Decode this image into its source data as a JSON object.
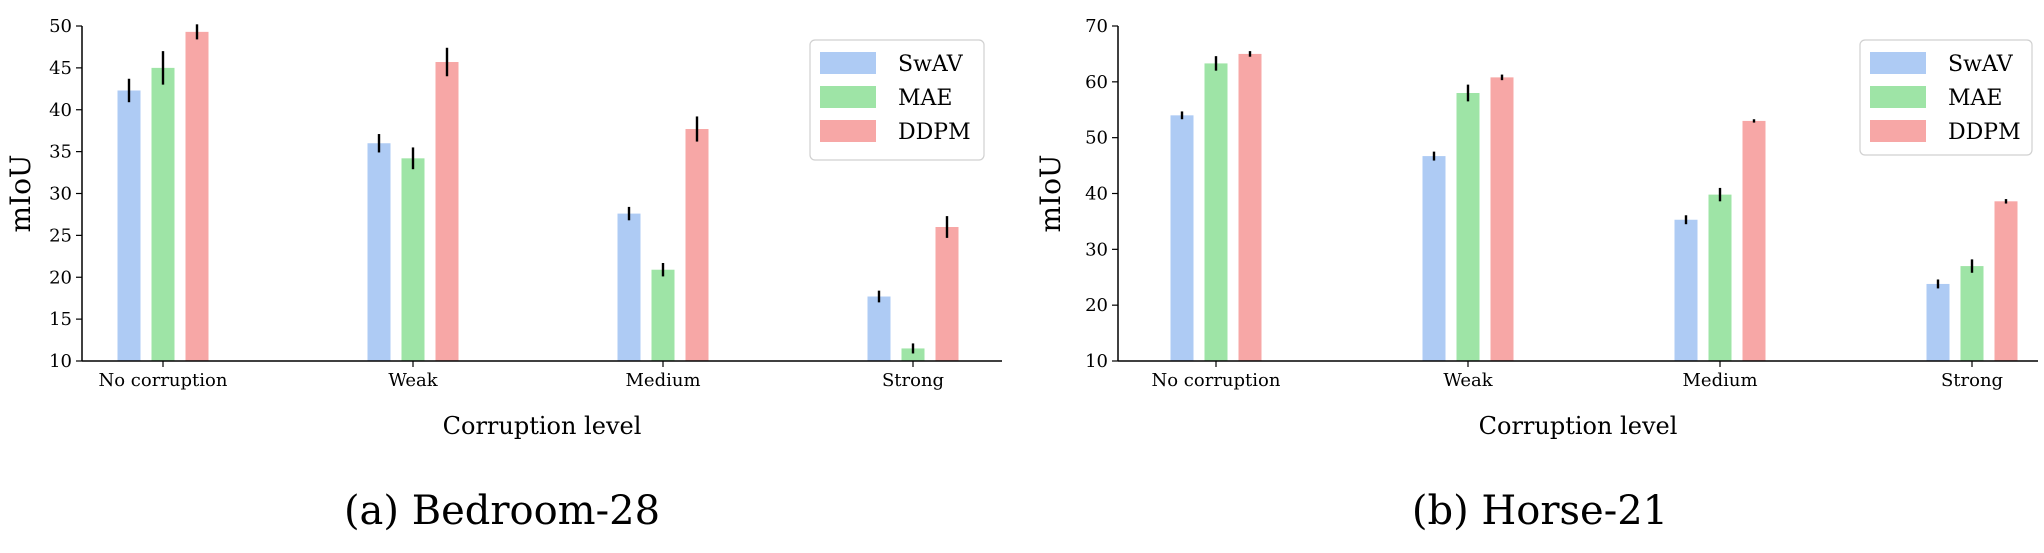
{
  "chart_data": [
    {
      "type": "bar",
      "caption": "(a) Bedroom-28",
      "categories": [
        "No corruption",
        "Weak",
        "Medium",
        "Strong"
      ],
      "xlabel": "Corruption level",
      "ylabel": "mIoU",
      "ylim": [
        10,
        50
      ],
      "yticks": [
        10,
        15,
        20,
        25,
        30,
        35,
        40,
        45,
        50
      ],
      "legend": "top-right",
      "grid": false,
      "series": [
        {
          "name": "SwAV",
          "color": "#aecbf4",
          "values": [
            42.3,
            36.0,
            27.6,
            17.7
          ],
          "errors": [
            1.4,
            1.1,
            0.8,
            0.7
          ]
        },
        {
          "name": "MAE",
          "color": "#9ee4a6",
          "values": [
            45.0,
            34.2,
            20.9,
            11.5
          ],
          "errors": [
            2.0,
            1.3,
            0.8,
            0.6
          ]
        },
        {
          "name": "DDPM",
          "color": "#f7a7a6",
          "values": [
            49.3,
            45.7,
            37.7,
            26.0
          ],
          "errors": [
            0.9,
            1.7,
            1.5,
            1.3
          ]
        }
      ]
    },
    {
      "type": "bar",
      "caption": "(b) Horse-21",
      "categories": [
        "No corruption",
        "Weak",
        "Medium",
        "Strong"
      ],
      "xlabel": "Corruption level",
      "ylabel": "mIoU",
      "ylim": [
        10,
        70
      ],
      "yticks": [
        10,
        20,
        30,
        40,
        50,
        60,
        70
      ],
      "legend": "top-right",
      "grid": false,
      "series": [
        {
          "name": "SwAV",
          "color": "#aecbf4",
          "values": [
            54.0,
            46.7,
            35.3,
            23.8
          ],
          "errors": [
            0.7,
            0.8,
            0.8,
            0.8
          ]
        },
        {
          "name": "MAE",
          "color": "#9ee4a6",
          "values": [
            63.3,
            58.0,
            39.8,
            27.0
          ],
          "errors": [
            1.3,
            1.5,
            1.2,
            1.2
          ]
        },
        {
          "name": "DDPM",
          "color": "#f7a7a6",
          "values": [
            65.0,
            60.8,
            53.0,
            38.6
          ],
          "errors": [
            0.5,
            0.5,
            0.3,
            0.4
          ]
        }
      ]
    }
  ]
}
